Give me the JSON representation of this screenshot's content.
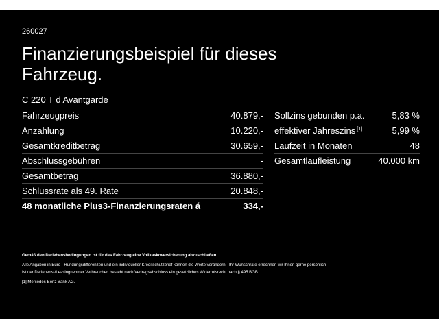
{
  "code": "260027",
  "title": "Finanzierungsbeispiel für dieses Fahrzeug.",
  "model": "C 220 T d Avantgarde",
  "left_table": {
    "rows": [
      [
        "Fahrzeugpreis",
        "40.879,-"
      ],
      [
        "Anzahlung",
        "10.220,-"
      ],
      [
        "Gesamtkreditbetrag",
        "30.659,-"
      ],
      [
        "Abschlussgebühren",
        "-"
      ],
      [
        "Gesamtbetrag",
        "36.880,-"
      ],
      [
        "Schlussrate als 49. Rate",
        "20.848,-"
      ],
      [
        "48 monatliche Plus3-Finanzierungsraten á",
        "334,-"
      ]
    ]
  },
  "right_table": {
    "rows": [
      {
        "label": "Sollzins gebunden p.a.",
        "value": "5,83 %"
      },
      {
        "label": "effektiver Jahreszins",
        "sup": "[1]",
        "value": "5,99 %"
      },
      {
        "label": "Laufzeit in Monaten",
        "value": "48"
      },
      {
        "label": "Gesamtlaufleistung",
        "value": "40.000 km"
      }
    ]
  },
  "footnotes": {
    "bold": "Gemäß den Darlehensbedingungen ist für das Fahrzeug eine Vollkaskoversicherung abzuschließen.",
    "lines": [
      "Alle Angaben in Euro - Rundungsdifferenzen und ein individueller Kreditschutzbrief können die Werte verändern - Ihr Wunschrate errechnen wir Ihnen gerne persönlich",
      "Ist der Darlehens-/Leasingnehmer Verbraucher, besteht nach Vertragsabschluss ein gesetzliches Widerrufsrecht nach § 495 BGB"
    ],
    "ref_mark": "[1]",
    "ref_text": "Mercedes-Benz Bank AG."
  }
}
